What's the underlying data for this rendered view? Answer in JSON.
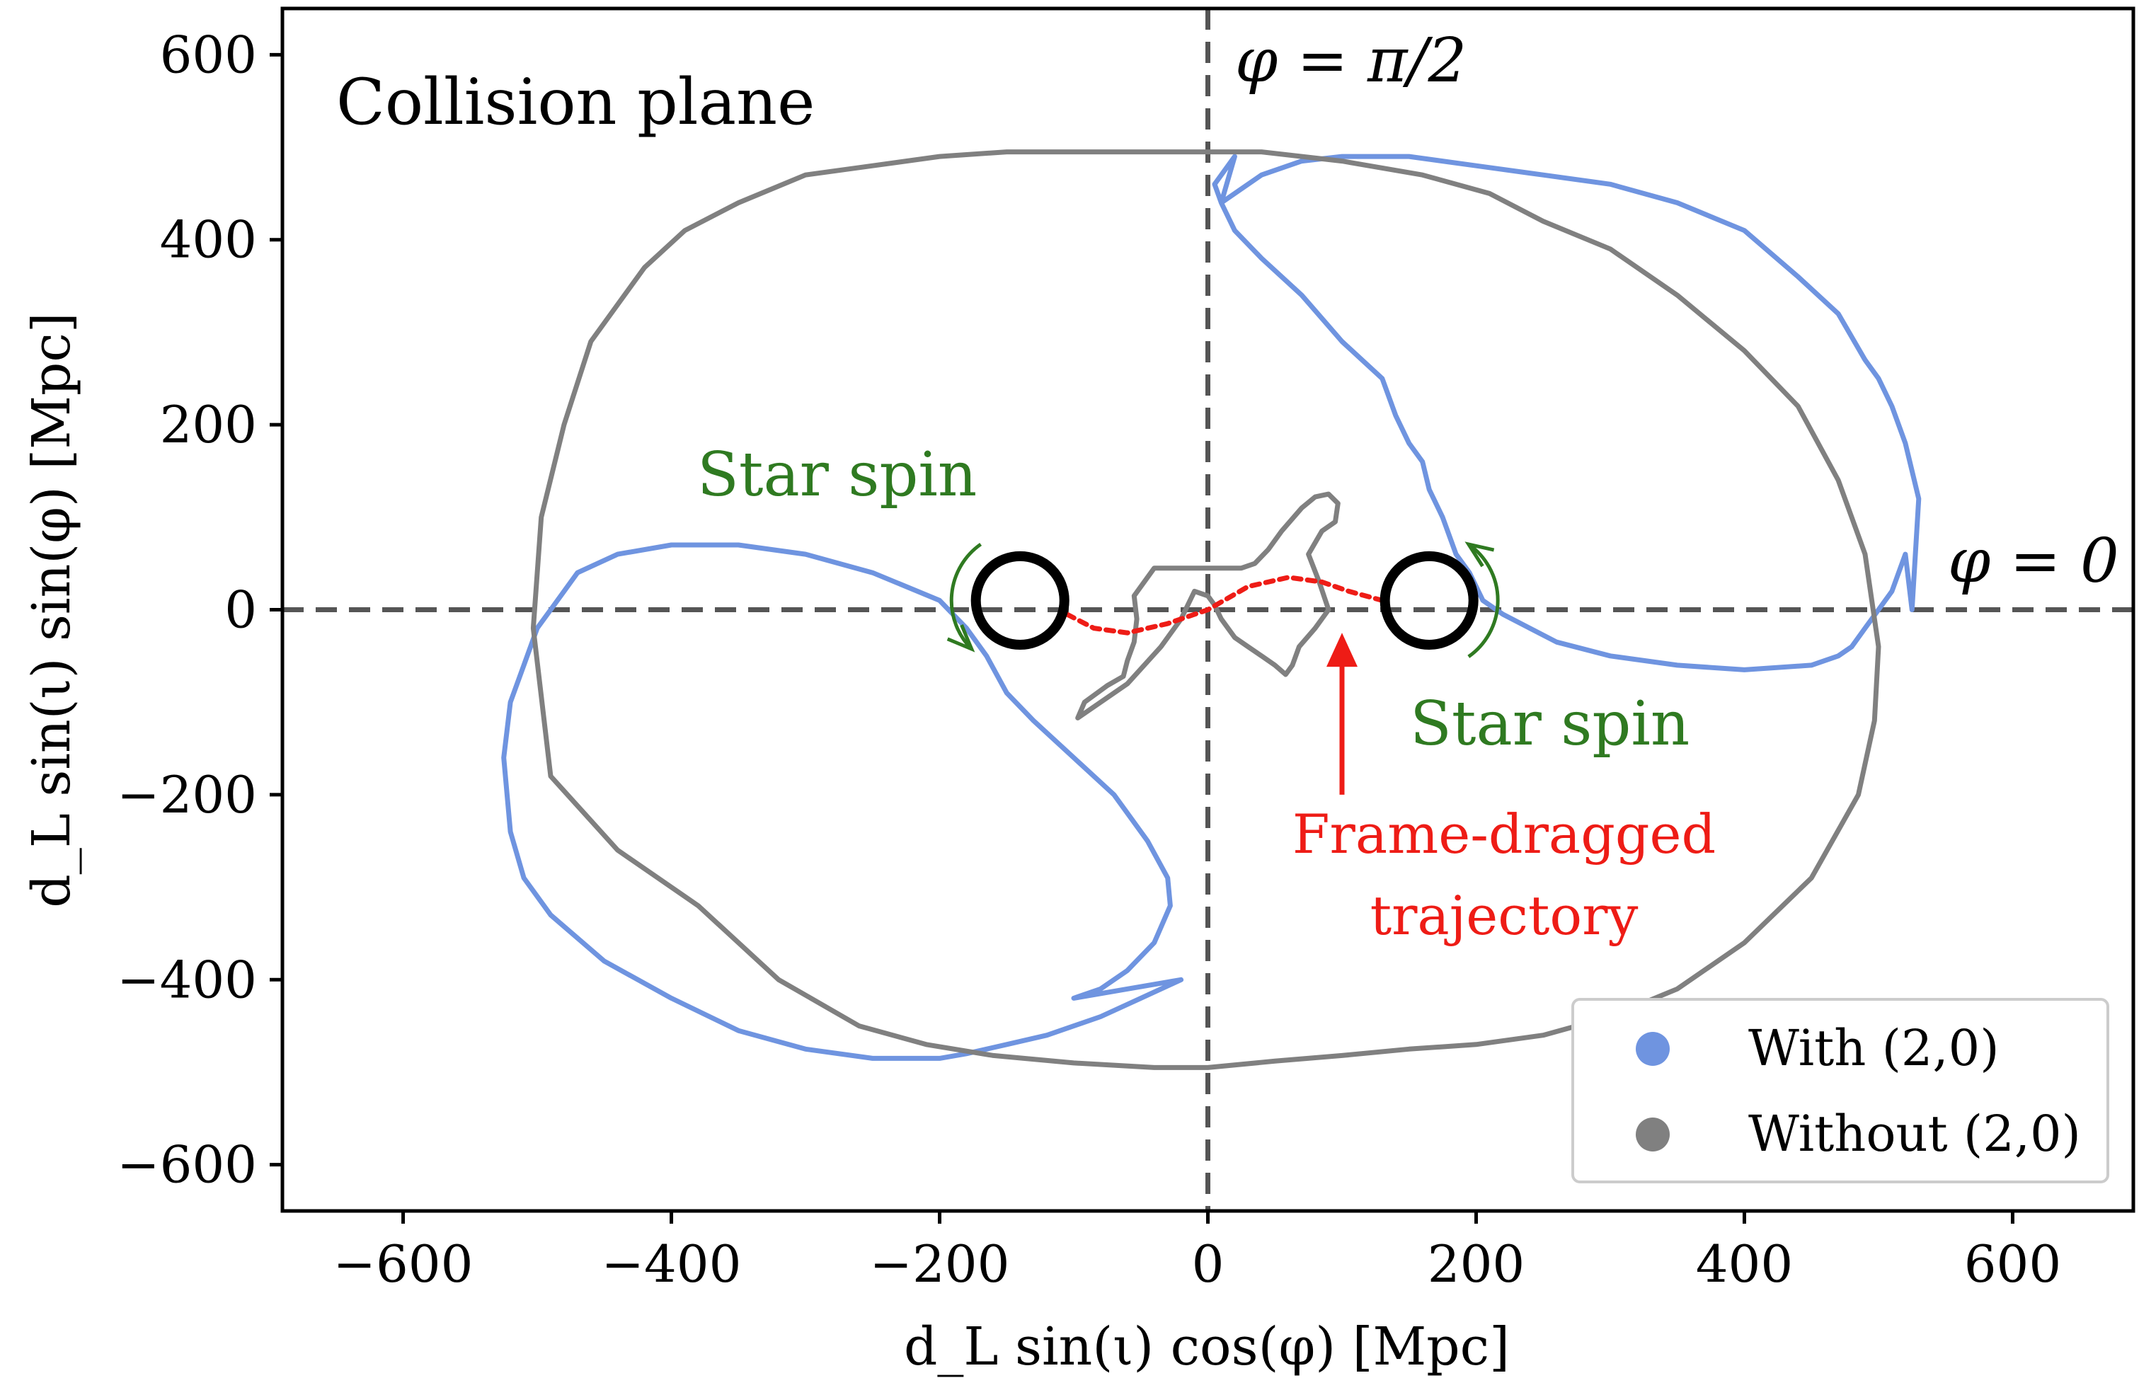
{
  "chart_data": {
    "type": "line",
    "title": "Collision plane",
    "xlabel": "d_L sin(ι) cos(φ)  [Mpc]",
    "ylabel": "d_L sin(ι) sin(φ)  [Mpc]",
    "xlim": [
      -690,
      690
    ],
    "ylim": [
      -650,
      650
    ],
    "xticks": [
      -600,
      -400,
      -200,
      0,
      200,
      400,
      600
    ],
    "yticks": [
      -600,
      -400,
      -200,
      0,
      200,
      400,
      600
    ],
    "xtick_labels": [
      "−600",
      "−400",
      "−200",
      "0",
      "200",
      "400",
      "600"
    ],
    "ytick_labels": [
      "−600",
      "−400",
      "−200",
      "0",
      "200",
      "400",
      "600"
    ],
    "series": [
      {
        "name": "With (2,0)",
        "color": "#6f94e0",
        "closed_loops": [
          {
            "x": [
              10,
              40,
              70,
              100,
              150,
              200,
              250,
              300,
              350,
              400,
              440,
              470,
              490,
              500,
              510,
              520,
              530,
              525,
              520,
              510,
              500,
              490,
              480,
              470,
              450,
              400,
              350,
              300,
              260,
              240,
              220,
              205,
              195,
              185,
              175,
              165,
              160,
              150,
              140,
              130,
              100,
              70,
              40,
              20,
              10,
              5,
              15,
              20
            ],
            "y": [
              440,
              470,
              485,
              490,
              490,
              480,
              470,
              460,
              440,
              410,
              360,
              320,
              270,
              250,
              220,
              180,
              120,
              0,
              60,
              20,
              0,
              -20,
              -40,
              -50,
              -60,
              -65,
              -60,
              -50,
              -35,
              -20,
              -5,
              10,
              40,
              60,
              100,
              130,
              160,
              180,
              210,
              250,
              290,
              340,
              380,
              410,
              440,
              460,
              480,
              490
            ]
          },
          {
            "x": [
              -20,
              -50,
              -80,
              -120,
              -150,
              -180,
              -200,
              -250,
              -300,
              -350,
              -400,
              -450,
              -490,
              -510,
              -520,
              -525,
              -520,
              -510,
              -500,
              -490,
              -480,
              -470,
              -440,
              -400,
              -350,
              -300,
              -250,
              -200,
              -180,
              -165,
              -150,
              -130,
              -100,
              -70,
              -45,
              -30,
              -28,
              -40,
              -60,
              -80,
              -100
            ],
            "y": [
              -400,
              -420,
              -440,
              -460,
              -470,
              -480,
              -485,
              -485,
              -475,
              -455,
              -420,
              -380,
              -330,
              -290,
              -240,
              -160,
              -100,
              -60,
              -20,
              0,
              20,
              40,
              60,
              70,
              70,
              60,
              40,
              10,
              -20,
              -50,
              -90,
              -120,
              -160,
              -200,
              -250,
              -290,
              -320,
              -360,
              -390,
              -410,
              -420
            ]
          }
        ]
      },
      {
        "name": "Without (2,0)",
        "color": "#808080",
        "closed_loops": [
          {
            "x": [
              0,
              40,
              100,
              160,
              210,
              250,
              300,
              350,
              400,
              440,
              470,
              490,
              500,
              497,
              485,
              450,
              400,
              350,
              300,
              250,
              200,
              150,
              100,
              50,
              0,
              -40,
              -100,
              -160,
              -210,
              -260,
              -320,
              -380,
              -440,
              -490,
              -503,
              -497,
              -480,
              -460,
              -420,
              -390,
              -350,
              -300,
              -250,
              -200,
              -150,
              -100,
              -60,
              -20,
              0
            ],
            "y": [
              495,
              495,
              485,
              470,
              450,
              420,
              390,
              340,
              280,
              220,
              140,
              60,
              -40,
              -120,
              -200,
              -290,
              -360,
              -410,
              -440,
              -460,
              -470,
              -475,
              -482,
              -488,
              -495,
              -495,
              -490,
              -482,
              -470,
              -450,
              -400,
              -320,
              -260,
              -180,
              -20,
              100,
              200,
              290,
              370,
              410,
              440,
              470,
              480,
              490,
              495,
              495,
              495,
              495,
              495
            ]
          },
          {
            "x": [
              -97,
              -92,
              -75,
              -63,
              -60,
              -55,
              -53,
              -55,
              -40,
              0,
              25,
              35,
              45,
              55,
              70,
              80,
              90,
              97,
              95,
              85,
              75,
              83,
              90,
              80,
              68,
              63,
              58,
              50,
              40,
              30,
              20,
              10,
              5,
              0,
              -10,
              -20,
              -35,
              -60,
              -97
            ],
            "y": [
              -117,
              -100,
              -82,
              -72,
              -55,
              -35,
              -10,
              15,
              45,
              45,
              45,
              50,
              65,
              85,
              110,
              122,
              125,
              115,
              95,
              85,
              60,
              30,
              0,
              -20,
              -40,
              -60,
              -70,
              -60,
              -50,
              -40,
              -30,
              -10,
              5,
              15,
              20,
              -10,
              -40,
              -80,
              -117
            ]
          }
        ]
      }
    ],
    "reference_lines": [
      {
        "orientation": "vertical",
        "x": 0,
        "label": "φ = π/2"
      },
      {
        "orientation": "horizontal",
        "y": 0,
        "label": "φ = 0"
      }
    ],
    "annotations": {
      "star_spin_left": "Star spin",
      "star_spin_right": "Star spin",
      "trajectory_line1": "Frame-dragged",
      "trajectory_line2": "trajectory",
      "star_left": {
        "x": -140,
        "y": 10
      },
      "star_right": {
        "x": 165,
        "y": 10
      },
      "trajectory": {
        "x": [
          -105,
          -85,
          -60,
          -30,
          0,
          30,
          60,
          85,
          105,
          130
        ],
        "y": [
          -5,
          -20,
          -25,
          -15,
          0,
          25,
          35,
          30,
          20,
          10
        ]
      },
      "arrow_tip": {
        "x": 100,
        "y": -25
      },
      "arrow_tail": {
        "x": 100,
        "y": -200
      }
    },
    "legend_position": "bottom-right",
    "grid": false
  },
  "legend": {
    "with_label": "With (2,0)",
    "without_label": "Without (2,0)"
  },
  "colors": {
    "with": "#6f94e0",
    "without": "#808080",
    "spin": "#2f7a21",
    "trajectory": "#ee1c16",
    "reference": "#555555"
  }
}
